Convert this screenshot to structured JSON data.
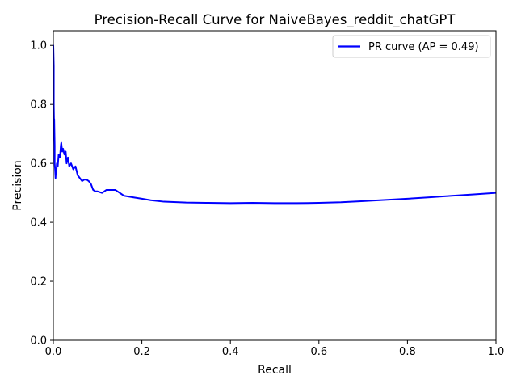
{
  "chart_data": {
    "type": "line",
    "title": "Precision-Recall Curve for NaiveBayes_reddit_chatGPT",
    "xlabel": "Recall",
    "ylabel": "Precision",
    "xlim": [
      0.0,
      1.0
    ],
    "ylim": [
      0.0,
      1.05
    ],
    "xticks": [
      0.0,
      0.2,
      0.4,
      0.6,
      0.8,
      1.0
    ],
    "xtick_labels": [
      "0.0",
      "0.2",
      "0.4",
      "0.6",
      "0.8",
      "1.0"
    ],
    "yticks": [
      0.0,
      0.2,
      0.4,
      0.6,
      0.8,
      1.0
    ],
    "ytick_labels": [
      "0.0",
      "0.2",
      "0.4",
      "0.6",
      "0.8",
      "1.0"
    ],
    "grid": false,
    "legend": {
      "position": "top-right",
      "entries": [
        "PR curve (AP = 0.49)"
      ]
    },
    "series": [
      {
        "name": "PR curve (AP = 0.49)",
        "color": "#0000ff",
        "x": [
          0.0,
          0.001,
          0.001,
          0.002,
          0.002,
          0.003,
          0.003,
          0.004,
          0.005,
          0.006,
          0.007,
          0.008,
          0.01,
          0.012,
          0.015,
          0.017,
          0.018,
          0.02,
          0.022,
          0.025,
          0.028,
          0.03,
          0.033,
          0.036,
          0.04,
          0.045,
          0.05,
          0.055,
          0.06,
          0.065,
          0.07,
          0.075,
          0.08,
          0.085,
          0.09,
          0.095,
          0.1,
          0.11,
          0.12,
          0.13,
          0.14,
          0.15,
          0.16,
          0.18,
          0.2,
          0.22,
          0.25,
          0.3,
          0.35,
          0.4,
          0.45,
          0.5,
          0.55,
          0.6,
          0.65,
          0.7,
          0.75,
          0.8,
          0.85,
          0.9,
          0.95,
          1.0
        ],
        "y": [
          1.0,
          0.93,
          0.8,
          0.7,
          0.75,
          0.66,
          0.6,
          0.58,
          0.55,
          0.58,
          0.57,
          0.6,
          0.59,
          0.63,
          0.62,
          0.66,
          0.67,
          0.64,
          0.65,
          0.63,
          0.64,
          0.6,
          0.62,
          0.59,
          0.6,
          0.58,
          0.59,
          0.56,
          0.55,
          0.54,
          0.545,
          0.545,
          0.54,
          0.53,
          0.51,
          0.505,
          0.505,
          0.5,
          0.51,
          0.51,
          0.51,
          0.5,
          0.49,
          0.485,
          0.48,
          0.475,
          0.47,
          0.467,
          0.466,
          0.465,
          0.466,
          0.465,
          0.465,
          0.466,
          0.468,
          0.472,
          0.476,
          0.48,
          0.485,
          0.49,
          0.495,
          0.5
        ]
      }
    ]
  }
}
